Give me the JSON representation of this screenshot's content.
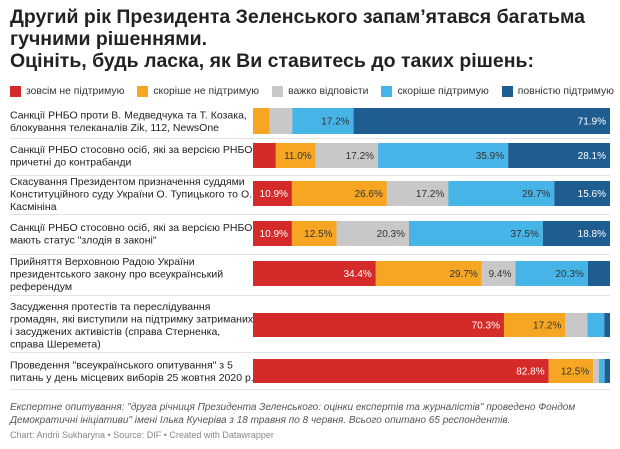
{
  "title_lines": [
    "Другий рік Президента Зеленського запам’ятався багатьма",
    "гучними рішеннями.",
    "Оцініть, будь ласка, як Ви ставитесь до таких рішень:"
  ],
  "notes_lines": [
    "Експертне опитування: \"друга річниця Президента Зеленського: оцінки експертів та журналістів\" проведено Фондом",
    "Демократичні ініціативи\" імені Ілька Кучеріва з 18 травня по 8 червня. Всього опитано 65 респондентів."
  ],
  "credit": "Chart: Andrii Sukharyna • Source: DIF • Created with Datawrapper",
  "chart_data": {
    "type": "bar",
    "orientation": "horizontal",
    "stacked": true,
    "normalized_percent": true,
    "legend_position": "top",
    "grid": false,
    "categories": [
      [
        "Санкції РНБО проти В. Медведчука та Т. Козака,",
        "блокування телеканалів Zik, 112, NewsOne"
      ],
      [
        "Санкції РНБО стосовно осіб, які за версією РНБО",
        "причетні до контрабанди"
      ],
      [
        "Скасування Президентом призначення суддями",
        "Конституційного суду України О. Тупицького то О.",
        "Касмініна"
      ],
      [
        "Санкції РНБО стосовно осіб, які за версією РНБО",
        "мають статус \"злодія в законі\""
      ],
      [
        "Прийняття Верховною Радою України",
        "президентського закону про всеукраїнський",
        "референдум"
      ],
      [
        "Засудження протестів та переслідування",
        "громадян, які виступили на підтримку затриманих",
        "і засуджених активістів (справа Стерненка,",
        "справа Шеремета)"
      ],
      [
        "Проведення \"всеукраїнського опитування\" з 5",
        "питань у день місцевих виборів 25 жовтня 2020 р."
      ]
    ],
    "series": [
      {
        "name": "зовсім не підтримую",
        "color": "#d52a2a",
        "values": [
          0,
          6.3,
          10.9,
          10.9,
          34.4,
          70.3,
          82.8
        ]
      },
      {
        "name": "скоріше не підтримую",
        "color": "#f6a623",
        "values": [
          4.7,
          11.0,
          26.6,
          12.5,
          29.7,
          17.2,
          12.5
        ]
      },
      {
        "name": "важко відповісти",
        "color": "#c8c8c8",
        "values": [
          6.3,
          17.2,
          17.2,
          20.3,
          9.4,
          6.2,
          1.6
        ]
      },
      {
        "name": "скоріше підтримую",
        "color": "#46b4e6",
        "values": [
          17.2,
          35.9,
          29.7,
          37.5,
          20.3,
          4.7,
          1.6
        ]
      },
      {
        "name": "повністю підтримую",
        "color": "#1f5d91",
        "values": [
          71.9,
          28.1,
          15.6,
          18.8,
          6.2,
          1.6,
          1.5
        ]
      }
    ],
    "data_labels": [
      [
        null,
        null,
        null,
        "17.2%",
        "71.9%"
      ],
      [
        null,
        "11.0%",
        "17.2%",
        "35.9%",
        "28.1%"
      ],
      [
        "10.9%",
        "26.6%",
        "17.2%",
        "29.7%",
        "15.6%"
      ],
      [
        "10.9%",
        "12.5%",
        "20.3%",
        "37.5%",
        "18.8%"
      ],
      [
        "34.4%",
        "29.7%",
        "9.4%",
        "20.3%",
        null
      ],
      [
        "70.3%",
        "17.2%",
        null,
        null,
        null
      ],
      [
        "82.8%",
        "12.5%",
        null,
        null,
        null
      ]
    ]
  }
}
